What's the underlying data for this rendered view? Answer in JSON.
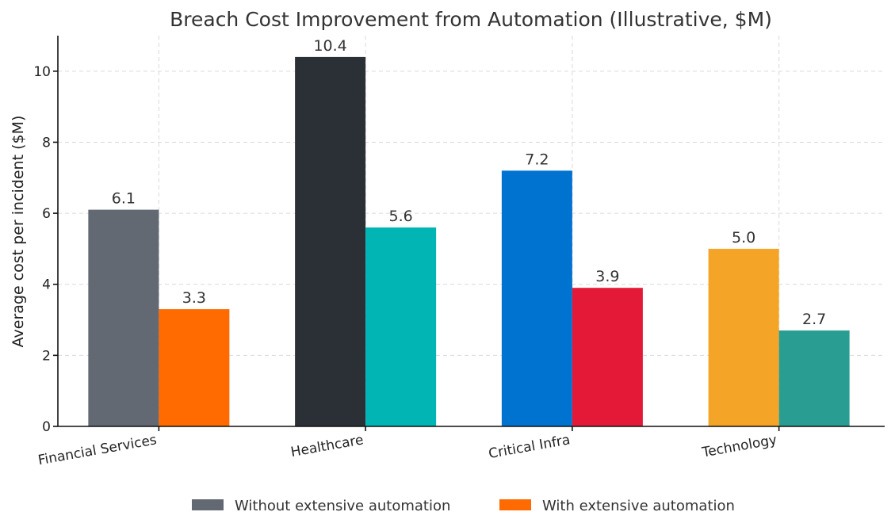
{
  "chart_data": {
    "type": "bar",
    "title": "Breach Cost Improvement from Automation (Illustrative, $M)",
    "xlabel": "",
    "ylabel": "Average cost per incident ($M)",
    "ylim": [
      0,
      11
    ],
    "yticks": [
      0,
      2,
      4,
      6,
      8,
      10
    ],
    "categories": [
      "Financial Services",
      "Healthcare",
      "Critical Infra",
      "Technology"
    ],
    "series": [
      {
        "name": "Without extensive automation",
        "values": [
          6.1,
          10.4,
          7.2,
          5.0
        ],
        "value_labels": [
          "6.1",
          "10.4",
          "7.2",
          "5.0"
        ]
      },
      {
        "name": "With extensive automation",
        "values": [
          3.3,
          5.6,
          3.9,
          2.7
        ],
        "value_labels": [
          "3.3",
          "5.6",
          "3.9",
          "2.7"
        ]
      }
    ],
    "bar_colors": [
      [
        "#626973",
        "#ff6b00"
      ],
      [
        "#2b2f36",
        "#00b5b3"
      ],
      [
        "#0073d1",
        "#e31937"
      ],
      [
        "#f4a427",
        "#2a9d93"
      ]
    ],
    "legend_colors": [
      "#626973",
      "#ff6b00"
    ],
    "legend_position": "bottom-center",
    "grid": true
  }
}
